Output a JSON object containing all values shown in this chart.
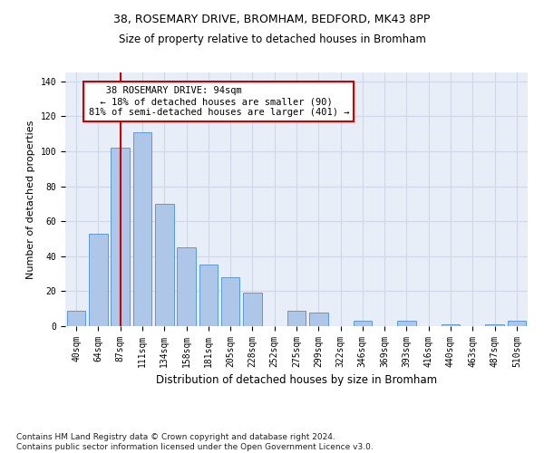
{
  "title_line1": "38, ROSEMARY DRIVE, BROMHAM, BEDFORD, MK43 8PP",
  "title_line2": "Size of property relative to detached houses in Bromham",
  "xlabel": "Distribution of detached houses by size in Bromham",
  "ylabel": "Number of detached properties",
  "bar_color": "#aec6e8",
  "bar_edge_color": "#5b9bd5",
  "categories": [
    "40sqm",
    "64sqm",
    "87sqm",
    "111sqm",
    "134sqm",
    "158sqm",
    "181sqm",
    "205sqm",
    "228sqm",
    "252sqm",
    "275sqm",
    "299sqm",
    "322sqm",
    "346sqm",
    "369sqm",
    "393sqm",
    "416sqm",
    "440sqm",
    "463sqm",
    "487sqm",
    "510sqm"
  ],
  "values": [
    9,
    53,
    102,
    111,
    70,
    45,
    35,
    28,
    19,
    0,
    9,
    8,
    0,
    3,
    0,
    3,
    0,
    1,
    0,
    1,
    3
  ],
  "vline_x": 2.0,
  "vline_color": "#cc0000",
  "annotation_text_line1": "   38 ROSEMARY DRIVE: 94sqm",
  "annotation_text_line2": "  ← 18% of detached houses are smaller (90)",
  "annotation_text_line3": "81% of semi-detached houses are larger (401) →",
  "annotation_box_color": "#cc0000",
  "ylim": [
    0,
    145
  ],
  "yticks": [
    0,
    20,
    40,
    60,
    80,
    100,
    120,
    140
  ],
  "grid_color": "#d0d8e8",
  "bg_color": "#e8eef8",
  "footnote": "Contains HM Land Registry data © Crown copyright and database right 2024.\nContains public sector information licensed under the Open Government Licence v3.0.",
  "title_fontsize": 9,
  "subtitle_fontsize": 8.5,
  "annot_fontsize": 7.5,
  "tick_fontsize": 7,
  "ylabel_fontsize": 8,
  "xlabel_fontsize": 8.5,
  "footnote_fontsize": 6.5
}
